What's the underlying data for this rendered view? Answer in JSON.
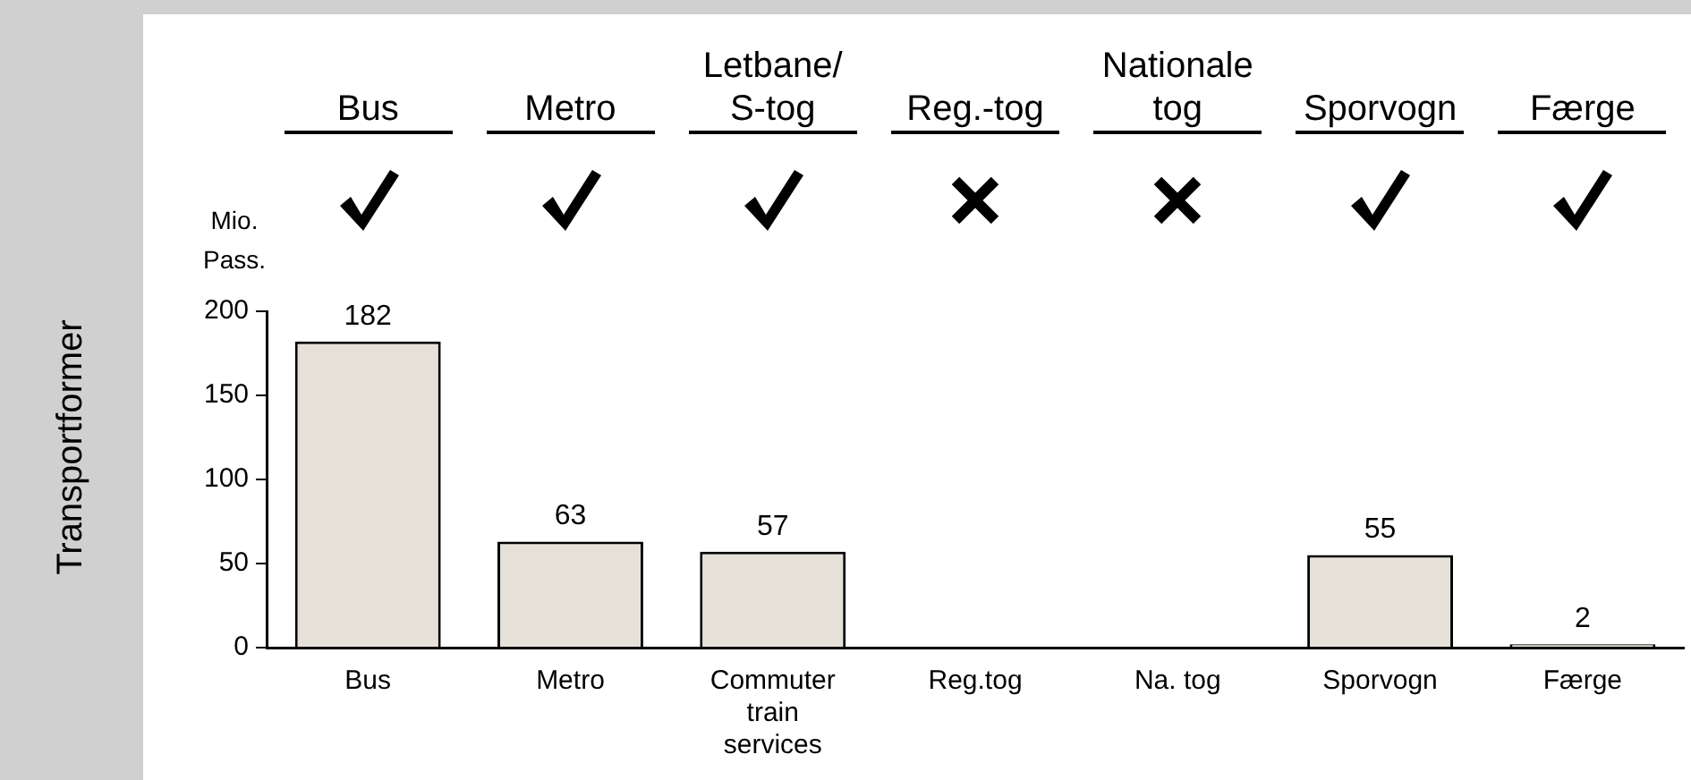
{
  "chart_data": {
    "type": "bar",
    "title": "Transportformer",
    "ylabel": "Mio. Pass.",
    "annotations": [
      "Bus",
      "Metro",
      "Letbane/\nS-tog",
      "Reg.-tog",
      "Nationale\ntog",
      "Sporvogn",
      "Færge"
    ],
    "categories": [
      "Bus",
      "Metro",
      "Commuter train services",
      "Reg.tog",
      "Na. tog",
      "Sporvogn",
      "Færge"
    ],
    "values": [
      182,
      63,
      57,
      null,
      null,
      55,
      2
    ],
    "color": "#e5e1d8",
    "ylim": [
      0,
      200
    ],
    "yticks": [
      0,
      50,
      100,
      150,
      200
    ],
    "grid": false,
    "data_labels": true
  }
}
